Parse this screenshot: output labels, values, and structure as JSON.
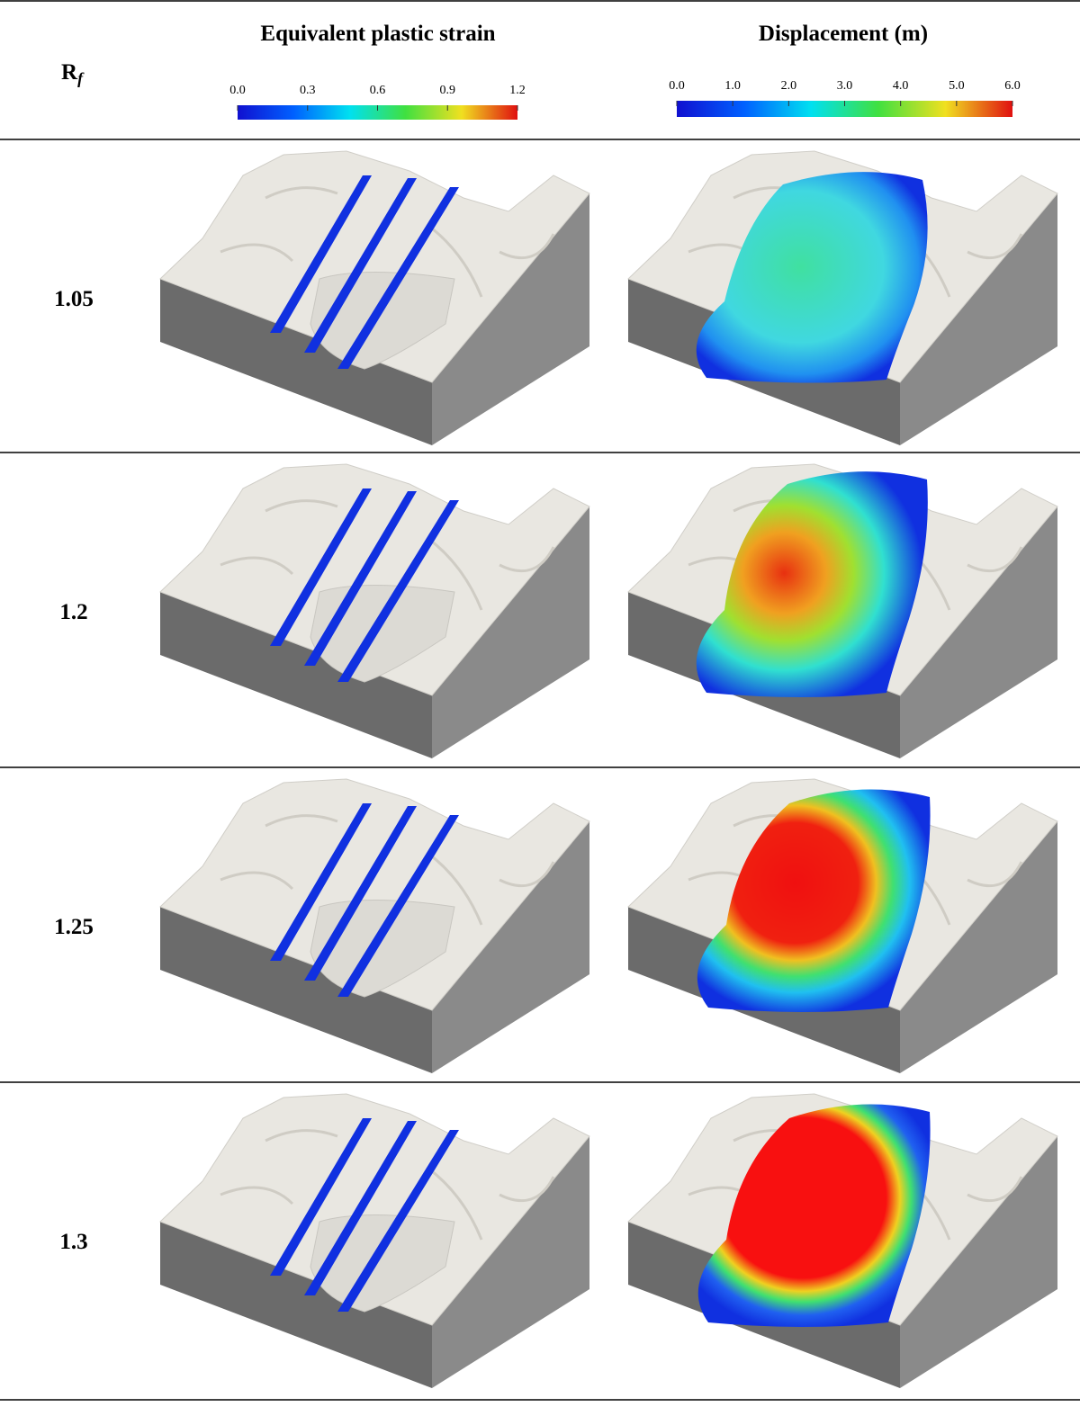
{
  "header": {
    "rf_label": {
      "base": "R",
      "subscript": "f"
    },
    "columns": [
      {
        "title": "Equivalent plastic strain",
        "colorbar_ticks": [
          "0.0",
          "0.3",
          "0.6",
          "0.9",
          "1.2"
        ]
      },
      {
        "title": "Displacement (m)",
        "colorbar_ticks": [
          "0.0",
          "1.0",
          "2.0",
          "3.0",
          "4.0",
          "5.0",
          "6.0"
        ]
      }
    ]
  },
  "rows": [
    {
      "rf": "1.05"
    },
    {
      "rf": "1.2"
    },
    {
      "rf": "1.25"
    },
    {
      "rf": "1.3"
    }
  ]
}
